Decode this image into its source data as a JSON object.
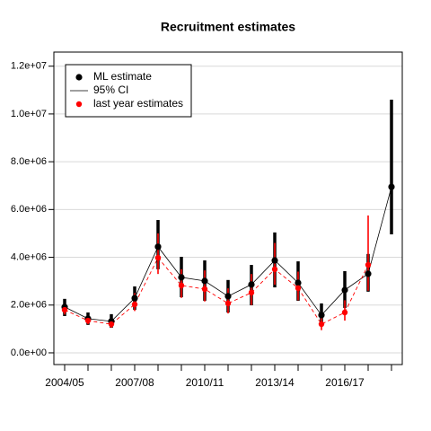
{
  "chart_data": {
    "type": "errorline",
    "title": "Recruitment estimates",
    "categories": [
      "2004/05",
      null,
      null,
      "2007/08",
      null,
      null,
      "2010/11",
      null,
      null,
      "2013/14",
      null,
      null,
      "2016/17",
      null,
      null
    ],
    "ylim": [
      -490000,
      12590000
    ],
    "yticks": [
      {
        "value": 0,
        "label": "0.0e+00"
      },
      {
        "value": 2000000,
        "label": "2.0e+06"
      },
      {
        "value": 4000000,
        "label": "4.0e+06"
      },
      {
        "value": 6000000,
        "label": "6.0e+06"
      },
      {
        "value": 8000000,
        "label": "8.0e+06"
      },
      {
        "value": 10000000,
        "label": "1.0e+07"
      },
      {
        "value": 12000000,
        "label": "1.2e+07"
      }
    ],
    "grid": true,
    "ci_label": "95% CI",
    "series": [
      {
        "name": "ML estimate",
        "color": "#000000",
        "values": [
          1920000,
          1430000,
          1320000,
          2290000,
          4440000,
          3160000,
          3010000,
          2370000,
          2860000,
          3870000,
          2930000,
          1580000,
          2630000,
          3310000,
          6950000
        ],
        "lower": [
          1540000,
          1170000,
          1050000,
          1800000,
          3500000,
          2330000,
          2180000,
          1690000,
          1990000,
          2740000,
          2180000,
          1130000,
          1880000,
          2560000,
          4960000
        ],
        "upper": [
          2260000,
          1690000,
          1620000,
          2780000,
          5560000,
          4020000,
          3870000,
          3050000,
          3680000,
          5040000,
          3830000,
          2070000,
          3420000,
          4140000,
          10600000
        ]
      },
      {
        "name": "last year estimates",
        "color": "#ff0000",
        "values": [
          1800000,
          1350000,
          1200000,
          2030000,
          3980000,
          2820000,
          2670000,
          2070000,
          2520000,
          3500000,
          2710000,
          1200000,
          1690000,
          3680000,
          null
        ],
        "lower": [
          1600000,
          1200000,
          1050000,
          1750000,
          3300000,
          2300000,
          2150000,
          1650000,
          2000000,
          2850000,
          2200000,
          950000,
          1350000,
          2600000,
          null
        ],
        "upper": [
          2050000,
          1550000,
          1450000,
          2500000,
          5000000,
          3500000,
          3450000,
          2700000,
          3300000,
          4600000,
          3400000,
          1500000,
          2200000,
          5750000,
          null
        ]
      }
    ]
  }
}
